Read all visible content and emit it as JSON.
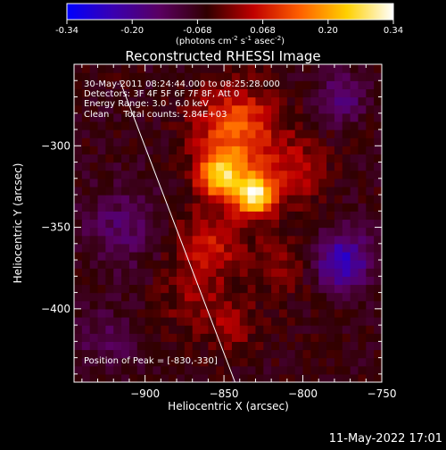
{
  "colorbar": {
    "ticks": [
      "-0.34",
      "-0.20",
      "-0.068",
      "0.068",
      "0.20",
      "0.34"
    ],
    "unit_main": "(photons cm",
    "unit_exp1": "-2",
    "unit_mid": " s",
    "unit_exp2": "-1",
    "unit_end": " asec",
    "unit_exp3": "-2",
    "unit_close": ")",
    "stops": [
      "#0000ff",
      "#3a00b0",
      "#5a0060",
      "#300000",
      "#c00000",
      "#ff6000",
      "#ffd000",
      "#ffffff"
    ]
  },
  "chart_data": {
    "type": "heatmap",
    "title": "Reconstructed RHESSI Image",
    "xlabel": "Heliocentric X (arcsec)",
    "ylabel": "Heliocentric Y (arcsec)",
    "xlim": [
      -945,
      -750
    ],
    "ylim": [
      -445,
      -250
    ],
    "xticks": [
      -900,
      -850,
      -800,
      -750
    ],
    "yticks": [
      -300,
      -350,
      -400
    ],
    "value_range": [
      -0.34,
      0.34
    ],
    "annotations": [
      "30-May-2011 08:24:44.000 to 08:25:28.000",
      "Detectors: 3F 4F 5F 6F 7F 8F, Att 0",
      "Energy Range: 3.0 - 6.0 keV",
      "Clean     Total counts: 2.84E+03"
    ],
    "peak_label": "Position of Peak = [-830,-330]",
    "peak": [
      -830,
      -330
    ],
    "sources": [
      {
        "x": -830,
        "y": -330,
        "amp": 0.34,
        "sigma": 9
      },
      {
        "x": -852,
        "y": -318,
        "amp": 0.28,
        "sigma": 10
      },
      {
        "x": -842,
        "y": -290,
        "amp": 0.2,
        "sigma": 18
      },
      {
        "x": -860,
        "y": -360,
        "amp": 0.12,
        "sigma": 16
      },
      {
        "x": -805,
        "y": -315,
        "amp": 0.1,
        "sigma": 14
      },
      {
        "x": -870,
        "y": -395,
        "amp": 0.06,
        "sigma": 14
      },
      {
        "x": -845,
        "y": -410,
        "amp": 0.07,
        "sigma": 12
      },
      {
        "x": -815,
        "y": -375,
        "amp": 0.06,
        "sigma": 14
      },
      {
        "x": -775,
        "y": -370,
        "amp": -0.2,
        "sigma": 12
      },
      {
        "x": -775,
        "y": -270,
        "amp": -0.12,
        "sigma": 10
      },
      {
        "x": -915,
        "y": -350,
        "amp": -0.08,
        "sigma": 18
      },
      {
        "x": -925,
        "y": -420,
        "amp": -0.06,
        "sigma": 14
      }
    ],
    "limb_line": [
      [
        -916,
        -260
      ],
      [
        -843,
        -445
      ]
    ]
  },
  "footer": {
    "date": "11-May-2022 17:01"
  }
}
